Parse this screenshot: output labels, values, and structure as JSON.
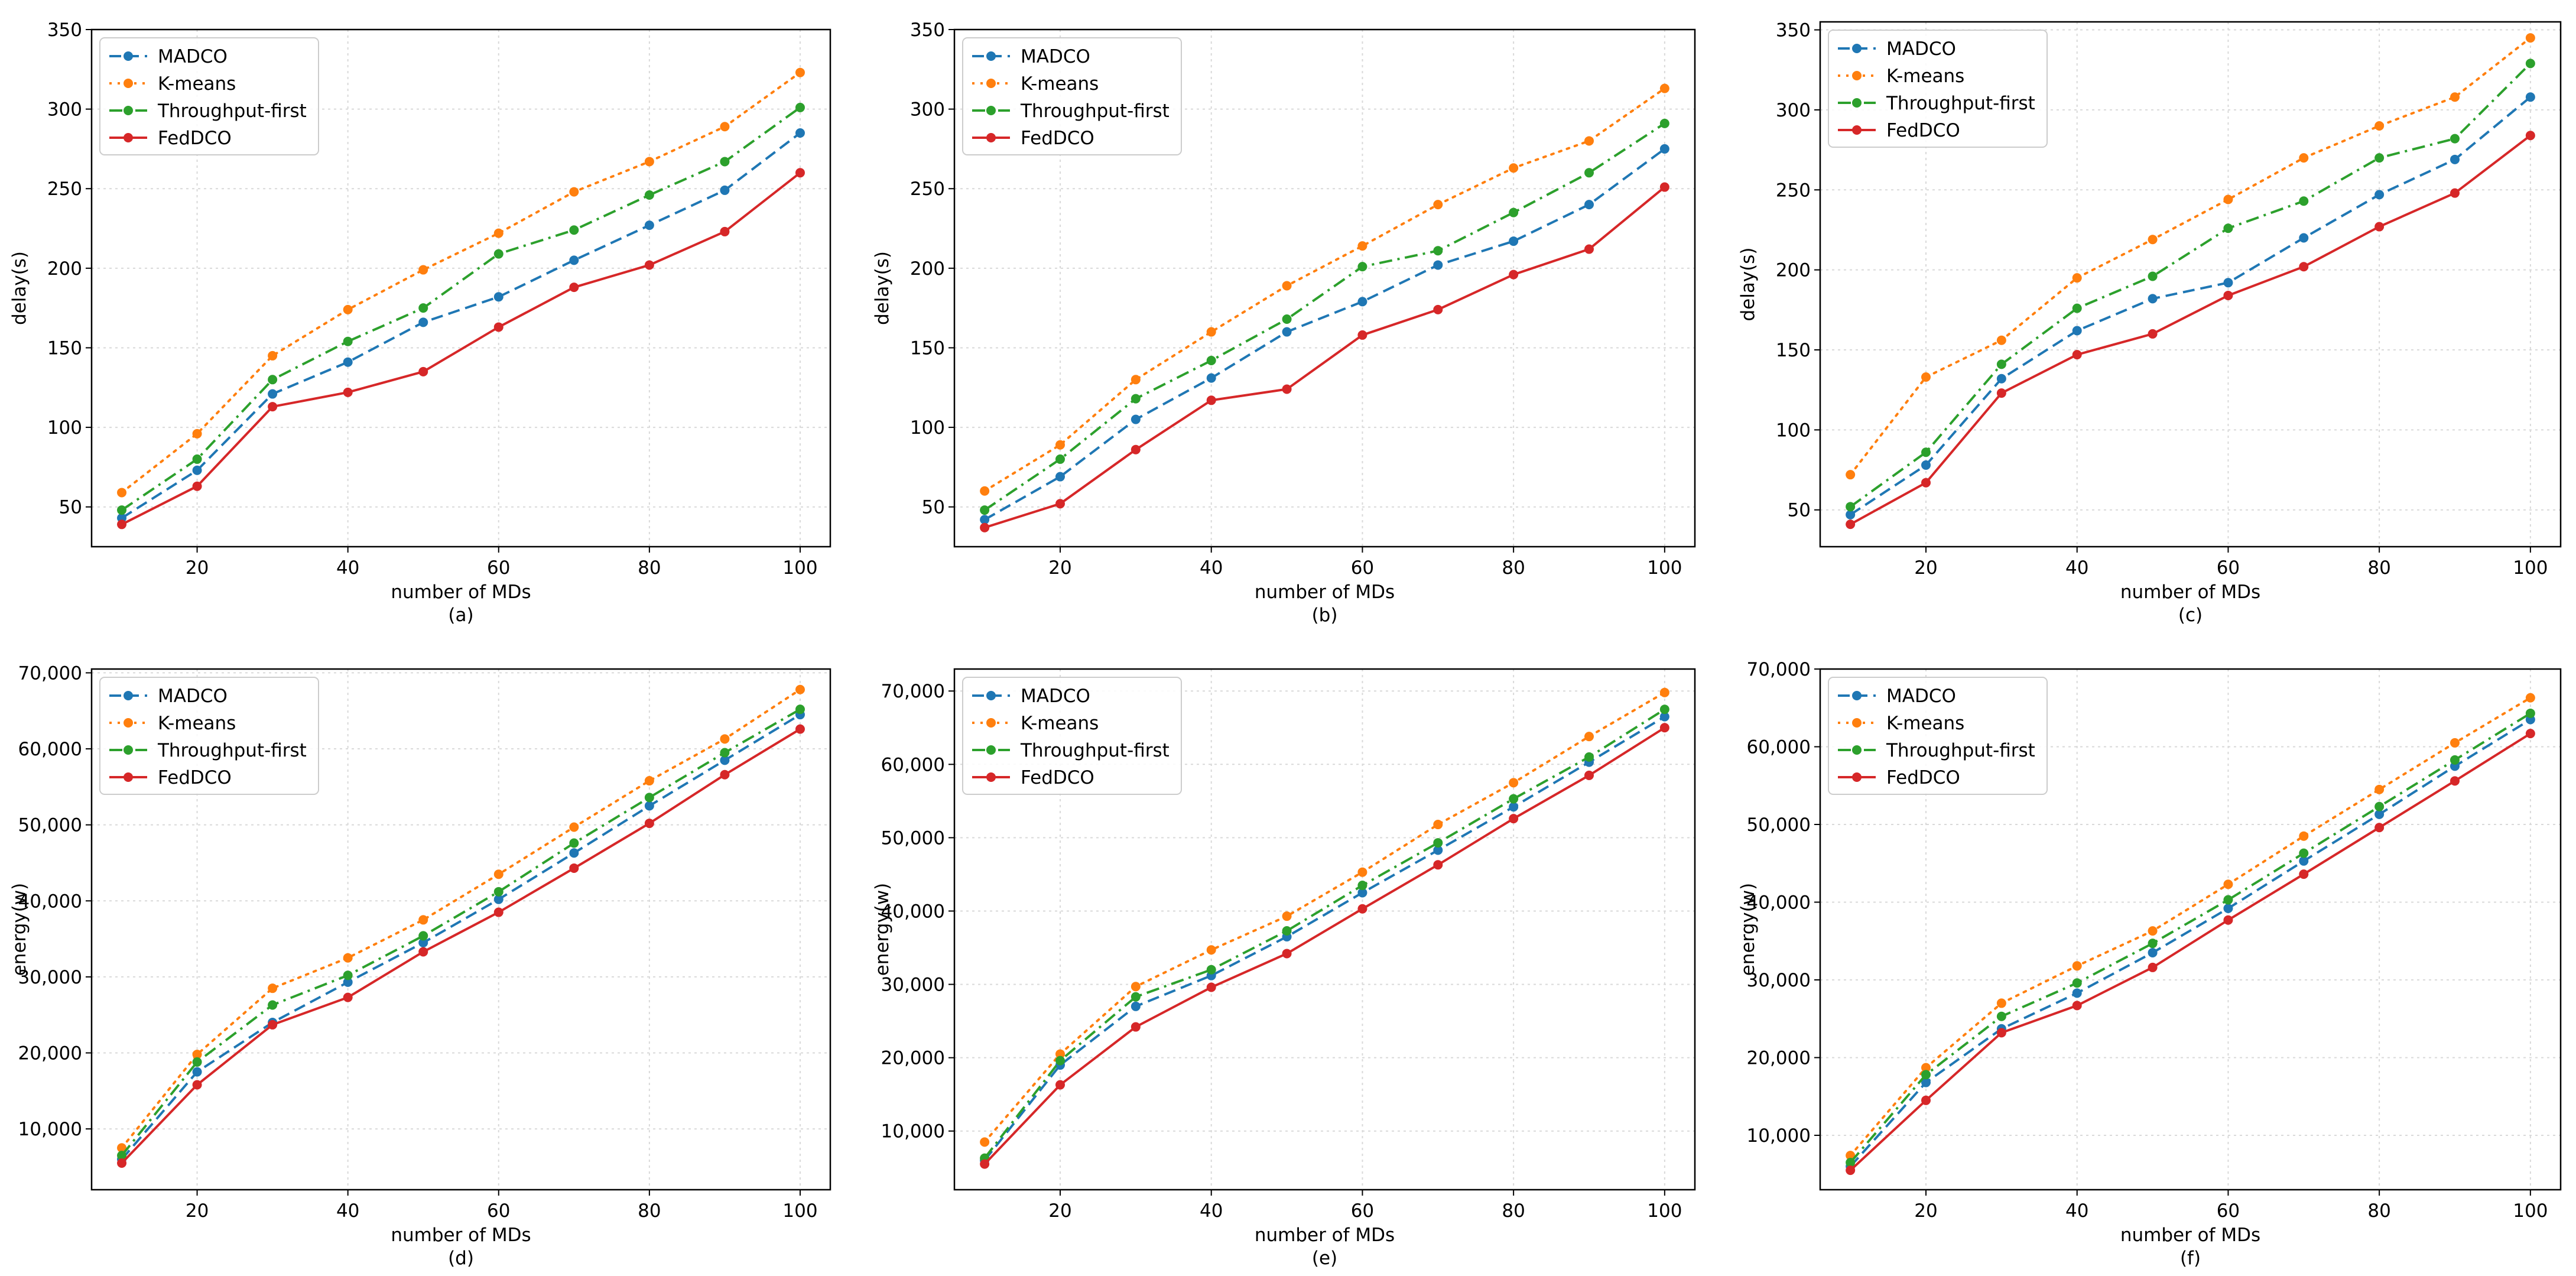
{
  "figure": {
    "background": "#ffffff"
  },
  "style": {
    "colors": {
      "MADCO": "#1f77b4",
      "K-means": "#ff7f0e",
      "Throughput-first": "#2ca02c",
      "FedDCO": "#d62728"
    },
    "dashes": {
      "MADCO": "dashed",
      "K-means": "dotted",
      "Throughput-first": "dashdot",
      "FedDCO": "solid"
    },
    "marker": "circle",
    "grid_color": "#d9d9d9"
  },
  "chart_data": [
    {
      "panel": "a",
      "type": "line",
      "caption": "(a)",
      "xlabel": "number of MDs",
      "ylabel": "delay(s)",
      "xlim": [
        6,
        104
      ],
      "ylim": [
        25,
        350
      ],
      "xticks": [
        20,
        40,
        60,
        80,
        100
      ],
      "yticks": [
        50,
        100,
        150,
        200,
        250,
        300,
        350
      ],
      "ytick_labels": [
        "50",
        "100",
        "150",
        "200",
        "250",
        "300",
        "350"
      ],
      "grid": true,
      "legend": "top-left",
      "x": [
        10,
        20,
        30,
        40,
        50,
        60,
        70,
        80,
        90,
        100
      ],
      "series": [
        {
          "name": "MADCO",
          "values": [
            43,
            73,
            121,
            141,
            166,
            182,
            205,
            227,
            249,
            285
          ]
        },
        {
          "name": "K-means",
          "values": [
            59,
            96,
            145,
            174,
            199,
            222,
            248,
            267,
            289,
            323
          ]
        },
        {
          "name": "Throughput-first",
          "values": [
            48,
            80,
            130,
            154,
            175,
            209,
            224,
            246,
            267,
            301
          ]
        },
        {
          "name": "FedDCO",
          "values": [
            39,
            63,
            113,
            122,
            135,
            163,
            188,
            202,
            223,
            260
          ]
        }
      ]
    },
    {
      "panel": "b",
      "type": "line",
      "caption": "(b)",
      "xlabel": "number of MDs",
      "ylabel": "delay(s)",
      "xlim": [
        6,
        104
      ],
      "ylim": [
        25,
        350
      ],
      "xticks": [
        20,
        40,
        60,
        80,
        100
      ],
      "yticks": [
        50,
        100,
        150,
        200,
        250,
        300,
        350
      ],
      "ytick_labels": [
        "50",
        "100",
        "150",
        "200",
        "250",
        "300",
        "350"
      ],
      "grid": true,
      "legend": "top-left",
      "x": [
        10,
        20,
        30,
        40,
        50,
        60,
        70,
        80,
        90,
        100
      ],
      "series": [
        {
          "name": "MADCO",
          "values": [
            42,
            69,
            105,
            131,
            160,
            179,
            202,
            217,
            240,
            275
          ]
        },
        {
          "name": "K-means",
          "values": [
            60,
            89,
            130,
            160,
            189,
            214,
            240,
            263,
            280,
            313
          ]
        },
        {
          "name": "Throughput-first",
          "values": [
            48,
            80,
            118,
            142,
            168,
            201,
            211,
            235,
            260,
            291
          ]
        },
        {
          "name": "FedDCO",
          "values": [
            37,
            52,
            86,
            117,
            124,
            158,
            174,
            196,
            212,
            251
          ]
        }
      ]
    },
    {
      "panel": "c",
      "type": "line",
      "caption": "(c)",
      "xlabel": "number of MDs",
      "ylabel": "delay(s)",
      "xlim": [
        6,
        104
      ],
      "ylim": [
        27,
        355
      ],
      "xticks": [
        20,
        40,
        60,
        80,
        100
      ],
      "yticks": [
        50,
        100,
        150,
        200,
        250,
        300,
        350
      ],
      "ytick_labels": [
        "50",
        "100",
        "150",
        "200",
        "250",
        "300",
        "350"
      ],
      "grid": true,
      "legend": "top-left",
      "x": [
        10,
        20,
        30,
        40,
        50,
        60,
        70,
        80,
        90,
        100
      ],
      "series": [
        {
          "name": "MADCO",
          "values": [
            47,
            78,
            132,
            162,
            182,
            192,
            220,
            247,
            269,
            308
          ]
        },
        {
          "name": "K-means",
          "values": [
            72,
            133,
            156,
            195,
            219,
            244,
            270,
            290,
            308,
            345
          ]
        },
        {
          "name": "Throughput-first",
          "values": [
            52,
            86,
            141,
            176,
            196,
            226,
            243,
            270,
            282,
            329
          ]
        },
        {
          "name": "FedDCO",
          "values": [
            41,
            67,
            123,
            147,
            160,
            184,
            202,
            227,
            248,
            284
          ]
        }
      ]
    },
    {
      "panel": "d",
      "type": "line",
      "caption": "(d)",
      "xlabel": "number of MDs",
      "ylabel": "energy(w)",
      "xlim": [
        6,
        104
      ],
      "ylim": [
        2000,
        70500
      ],
      "xticks": [
        20,
        40,
        60,
        80,
        100
      ],
      "yticks": [
        10000,
        20000,
        30000,
        40000,
        50000,
        60000,
        70000
      ],
      "ytick_labels": [
        "10,000",
        "20,000",
        "30,000",
        "40,000",
        "50,000",
        "60,000",
        "70,000"
      ],
      "grid": true,
      "legend": "top-left",
      "x": [
        10,
        20,
        30,
        40,
        50,
        60,
        70,
        80,
        90,
        100
      ],
      "series": [
        {
          "name": "MADCO",
          "values": [
            6000,
            17500,
            24000,
            29300,
            34500,
            40200,
            46300,
            52500,
            58500,
            64500
          ]
        },
        {
          "name": "K-means",
          "values": [
            7500,
            19800,
            28500,
            32500,
            37500,
            43500,
            49700,
            55800,
            61300,
            67800
          ]
        },
        {
          "name": "Throughput-first",
          "values": [
            6500,
            18800,
            26300,
            30200,
            35400,
            41200,
            47600,
            53600,
            59500,
            65200
          ]
        },
        {
          "name": "FedDCO",
          "values": [
            5500,
            15800,
            23700,
            27300,
            33300,
            38500,
            44300,
            50200,
            56600,
            62600
          ]
        }
      ]
    },
    {
      "panel": "e",
      "type": "line",
      "caption": "(e)",
      "xlabel": "number of MDs",
      "ylabel": "energy(w)",
      "xlim": [
        6,
        104
      ],
      "ylim": [
        2000,
        73000
      ],
      "xticks": [
        20,
        40,
        60,
        80,
        100
      ],
      "yticks": [
        10000,
        20000,
        30000,
        40000,
        50000,
        60000,
        70000
      ],
      "ytick_labels": [
        "10,000",
        "20,000",
        "30,000",
        "40,000",
        "50,000",
        "60,000",
        "70,000"
      ],
      "grid": true,
      "legend": "top-left",
      "x": [
        10,
        20,
        30,
        40,
        50,
        60,
        70,
        80,
        90,
        100
      ],
      "series": [
        {
          "name": "MADCO",
          "values": [
            6000,
            19000,
            27000,
            31200,
            36500,
            42500,
            48300,
            54200,
            60300,
            66500
          ]
        },
        {
          "name": "K-means",
          "values": [
            8500,
            20500,
            29700,
            34700,
            39300,
            45300,
            51800,
            57500,
            63800,
            69800
          ]
        },
        {
          "name": "Throughput-first",
          "values": [
            6300,
            19600,
            28300,
            32000,
            37300,
            43500,
            49300,
            55300,
            61000,
            67500
          ]
        },
        {
          "name": "FedDCO",
          "values": [
            5500,
            16300,
            24200,
            29600,
            34200,
            40300,
            46300,
            52600,
            58500,
            65000
          ]
        }
      ]
    },
    {
      "panel": "f",
      "type": "line",
      "caption": "(f)",
      "xlabel": "number of MDs",
      "ylabel": "energy(w)",
      "xlim": [
        6,
        104
      ],
      "ylim": [
        3000,
        70000
      ],
      "xticks": [
        20,
        40,
        60,
        80,
        100
      ],
      "yticks": [
        10000,
        20000,
        30000,
        40000,
        50000,
        60000,
        70000
      ],
      "ytick_labels": [
        "10,000",
        "20,000",
        "30,000",
        "40,000",
        "50,000",
        "60,000",
        "70,000"
      ],
      "grid": true,
      "legend": "top-left",
      "x": [
        10,
        20,
        30,
        40,
        50,
        60,
        70,
        80,
        90,
        100
      ],
      "series": [
        {
          "name": "MADCO",
          "values": [
            6000,
            16800,
            23700,
            28300,
            33500,
            39200,
            45300,
            51300,
            57500,
            63500
          ]
        },
        {
          "name": "K-means",
          "values": [
            7400,
            18700,
            27000,
            31800,
            36300,
            42300,
            48500,
            54500,
            60500,
            66300
          ]
        },
        {
          "name": "Throughput-first",
          "values": [
            6500,
            17800,
            25300,
            29600,
            34700,
            40300,
            46300,
            52300,
            58300,
            64300
          ]
        },
        {
          "name": "FedDCO",
          "values": [
            5500,
            14500,
            23200,
            26700,
            31600,
            37700,
            43600,
            49600,
            55600,
            61700
          ]
        }
      ]
    }
  ]
}
